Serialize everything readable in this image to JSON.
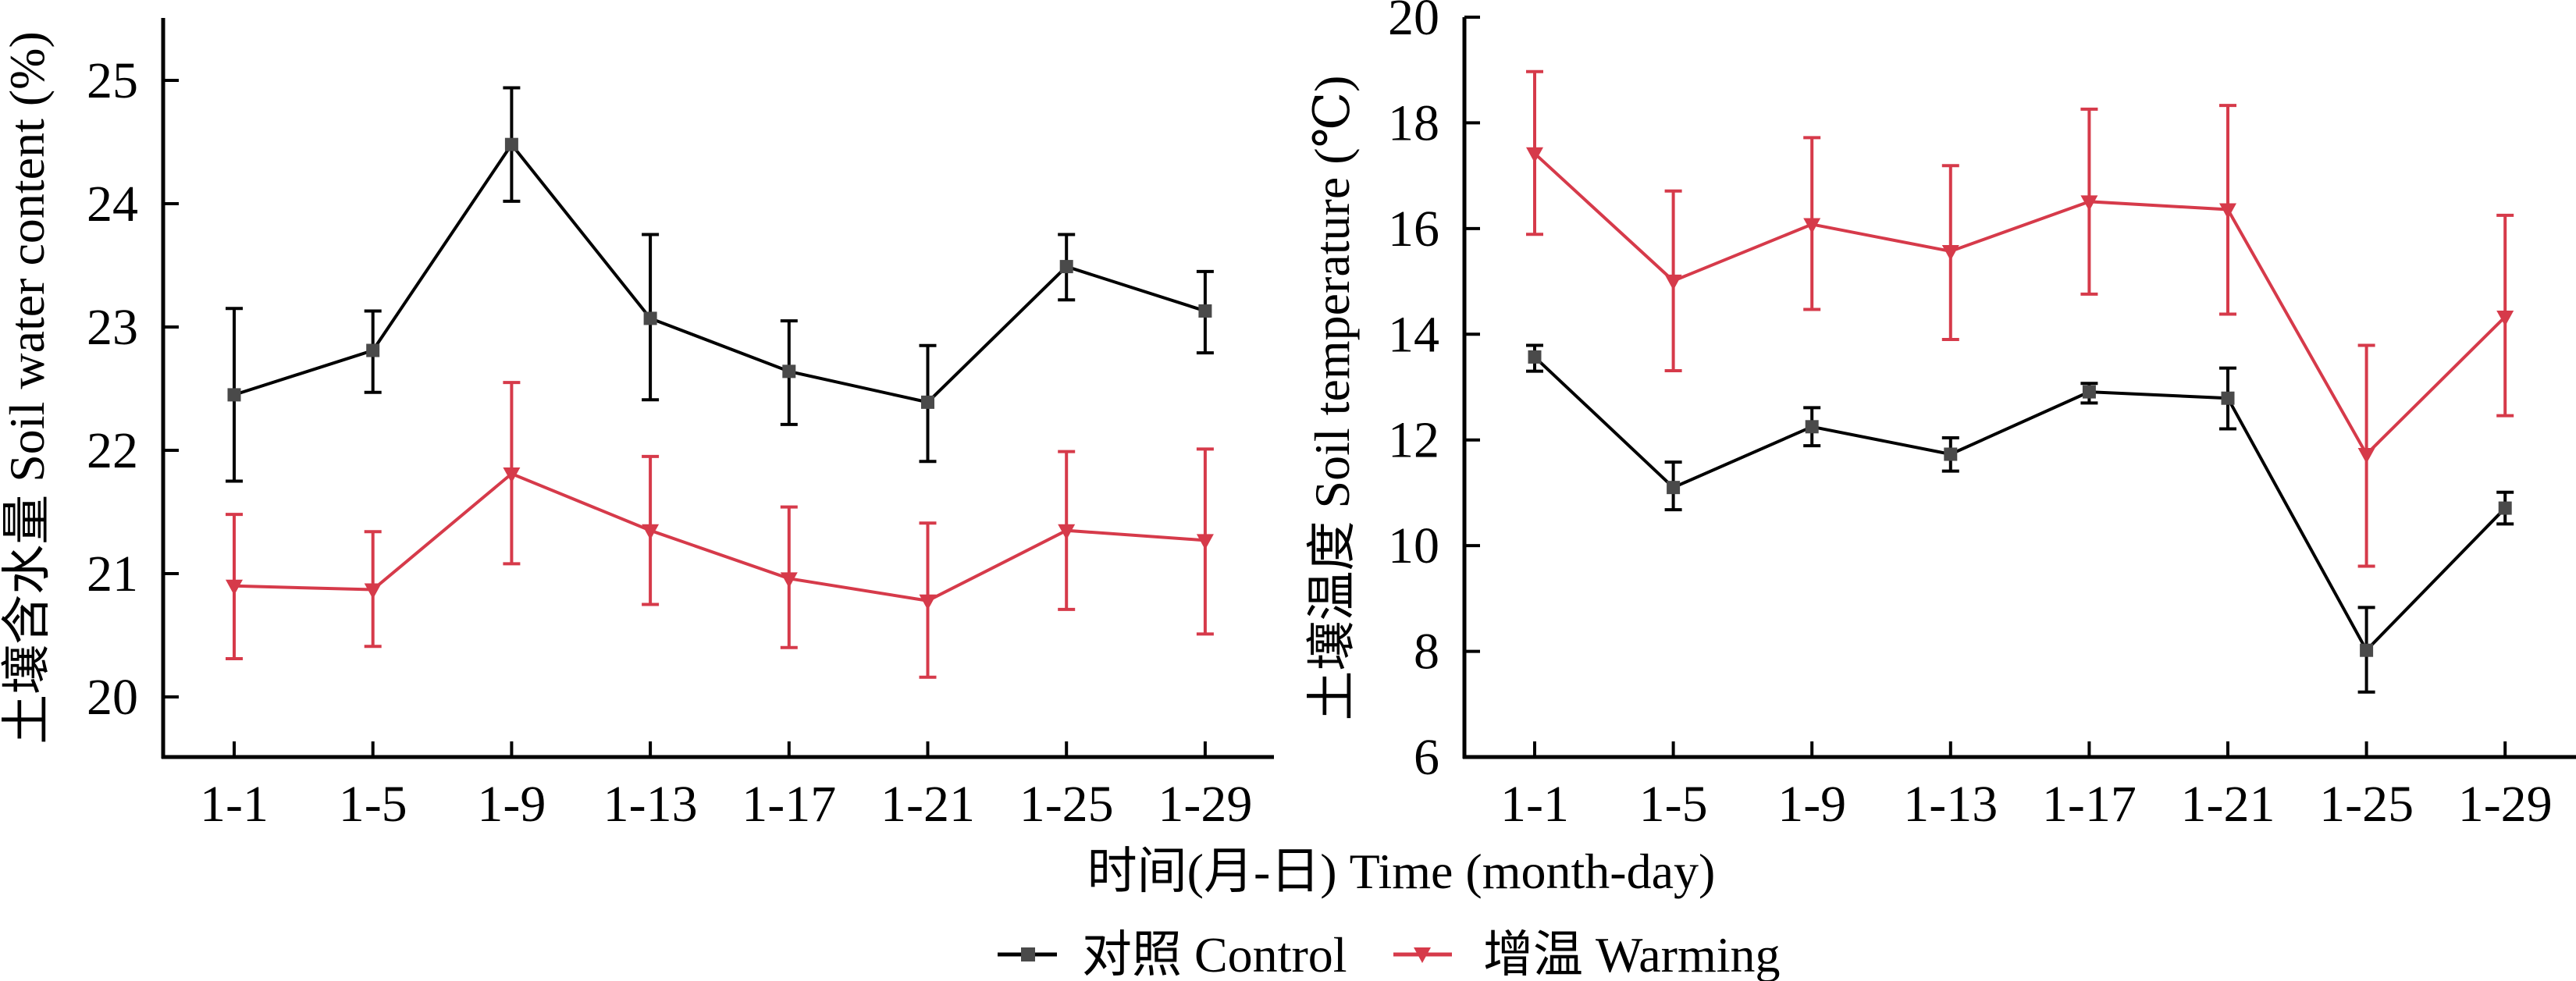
{
  "chart_data": [
    {
      "type": "line",
      "panel": "left",
      "title": "",
      "xlabel": "时间(月-日)  Time (month-day)",
      "ylabel": "土壤含水量 Soil water content (%)",
      "categories": [
        "1-1",
        "1-5",
        "1-9",
        "1-13",
        "1-17",
        "1-21",
        "1-25",
        "1-29"
      ],
      "yticks": [
        20,
        21,
        22,
        23,
        24,
        25
      ],
      "ylim": [
        19.5,
        25.5
      ],
      "grid": false,
      "error_bars": true,
      "series": [
        {
          "name": "对照 Control",
          "marker": "square",
          "values": [
            22.45,
            22.81,
            24.48,
            23.07,
            22.64,
            22.39,
            23.49,
            23.13
          ],
          "err_upper": [
            23.15,
            23.13,
            24.94,
            23.75,
            23.05,
            22.85,
            23.75,
            23.45
          ],
          "err_lower": [
            21.75,
            22.47,
            24.02,
            22.41,
            22.21,
            21.91,
            23.22,
            22.79
          ]
        },
        {
          "name": "增温 Warming",
          "marker": "triangle-down",
          "values": [
            20.9,
            20.87,
            21.81,
            21.35,
            20.96,
            20.78,
            21.35,
            21.27
          ],
          "err_upper": [
            21.48,
            21.34,
            22.55,
            21.95,
            21.54,
            21.41,
            21.99,
            22.01
          ],
          "err_lower": [
            20.31,
            20.41,
            21.08,
            20.75,
            20.4,
            20.16,
            20.71,
            20.51
          ]
        }
      ]
    },
    {
      "type": "line",
      "panel": "right",
      "title": "",
      "xlabel": "时间(月-日)  Time (month-day)",
      "ylabel": "土壤温度 Soil temperature (℃)",
      "categories": [
        "1-1",
        "1-5",
        "1-9",
        "1-13",
        "1-17",
        "1-21",
        "1-25",
        "1-29"
      ],
      "yticks": [
        6,
        8,
        10,
        12,
        14,
        16,
        18,
        20
      ],
      "ylim": [
        6,
        20
      ],
      "grid": false,
      "error_bars": true,
      "series": [
        {
          "name": "对照 Control",
          "marker": "square",
          "values": [
            13.57,
            11.1,
            12.25,
            11.73,
            12.91,
            12.79,
            8.02,
            10.71
          ],
          "err_upper": [
            13.79,
            11.58,
            12.61,
            12.04,
            13.07,
            13.36,
            8.83,
            11.01
          ],
          "err_lower": [
            13.3,
            10.68,
            11.89,
            11.41,
            12.7,
            12.21,
            7.23,
            10.41
          ]
        },
        {
          "name": "增温 Warming",
          "marker": "triangle-down",
          "values": [
            17.42,
            15.01,
            16.08,
            15.57,
            16.51,
            16.36,
            11.73,
            14.33
          ],
          "err_upper": [
            18.97,
            16.71,
            17.72,
            17.19,
            18.26,
            18.33,
            13.79,
            16.25
          ],
          "err_lower": [
            15.89,
            13.31,
            14.47,
            13.9,
            14.76,
            14.38,
            9.61,
            12.46
          ]
        }
      ]
    }
  ],
  "shared_xlabel": "时间(月-日)  Time (month-day)",
  "legend": {
    "position": "bottom-center",
    "items": [
      {
        "label": "对照 Control",
        "marker": "square",
        "color": "#000000",
        "marker_color": "#4a4a4a"
      },
      {
        "label": "增温 Warming",
        "marker": "triangle-down",
        "color": "#d63a4a",
        "marker_color": "#d63a4a"
      }
    ]
  },
  "colors": {
    "control_line": "#000000",
    "control_marker": "#4a4a4a",
    "warming": "#d63a4a",
    "axis": "#000000"
  }
}
